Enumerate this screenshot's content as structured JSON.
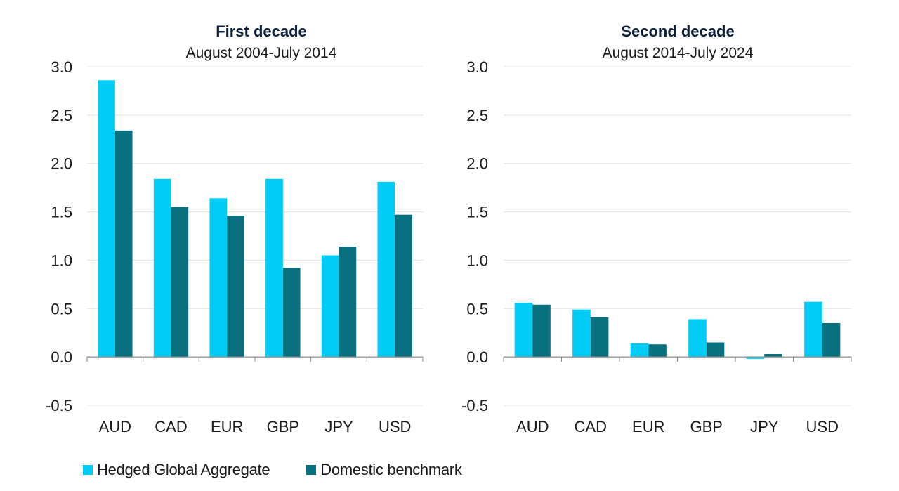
{
  "chart_data": [
    {
      "type": "bar",
      "title": "First decade",
      "subtitle": "August 2004-July 2014",
      "categories": [
        "AUD",
        "CAD",
        "EUR",
        "GBP",
        "JPY",
        "USD"
      ],
      "series": [
        {
          "name": "Hedged Global Aggregate",
          "color": "#00ccf5",
          "values": [
            2.86,
            1.84,
            1.64,
            1.84,
            1.05,
            1.81
          ]
        },
        {
          "name": "Domestic benchmark",
          "color": "#08707f",
          "values": [
            2.34,
            1.55,
            1.46,
            0.92,
            1.14,
            1.47
          ]
        }
      ],
      "ylim": [
        -0.5,
        3.0
      ],
      "yticks": [
        "3.0",
        "2.5",
        "2.0",
        "1.5",
        "1.0",
        "0.5",
        "0.0",
        "-0.5"
      ],
      "grid": true
    },
    {
      "type": "bar",
      "title": "Second decade",
      "subtitle": "August 2014-July 2024",
      "categories": [
        "AUD",
        "CAD",
        "EUR",
        "GBP",
        "JPY",
        "USD"
      ],
      "series": [
        {
          "name": "Hedged Global Aggregate",
          "color": "#00ccf5",
          "values": [
            0.56,
            0.49,
            0.14,
            0.39,
            -0.02,
            0.57
          ]
        },
        {
          "name": "Domestic benchmark",
          "color": "#08707f",
          "values": [
            0.54,
            0.41,
            0.13,
            0.15,
            0.03,
            0.35
          ]
        }
      ],
      "ylim": [
        -0.5,
        3.0
      ],
      "yticks": [
        "3.0",
        "2.5",
        "2.0",
        "1.5",
        "1.0",
        "0.5",
        "0.0",
        "-0.5"
      ],
      "grid": true
    }
  ],
  "legend": {
    "items": [
      {
        "label": "Hedged Global Aggregate",
        "color": "#00ccf5"
      },
      {
        "label": "Domestic benchmark",
        "color": "#08707f"
      }
    ],
    "placement": "bottom-left"
  }
}
